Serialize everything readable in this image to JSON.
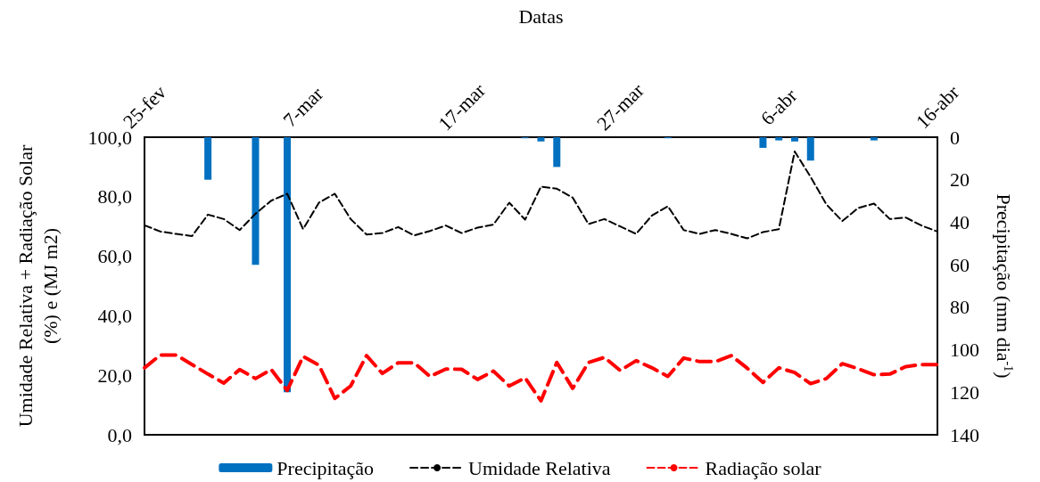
{
  "chart_data": {
    "type": "line",
    "xlabel": "Datas",
    "ylabel": "Umidade Relativa + Radiação Solar\n(%) e (MJ m2)",
    "y2label": "Precipitação (mm dia$^{-1}$)",
    "x": [
      "--02-25",
      "--02-26",
      "--02-27",
      "--02-28",
      "--03-01",
      "--03-02",
      "--03-03",
      "--03-04",
      "--03-05",
      "--03-06",
      "--03-07",
      "--03-08",
      "--03-09",
      "--03-10",
      "--03-11",
      "--03-12",
      "--03-13",
      "--03-14",
      "--03-15",
      "--03-16",
      "--03-17",
      "--03-18",
      "--03-19",
      "--03-20",
      "--03-21",
      "--03-22",
      "--03-23",
      "--03-24",
      "--03-25",
      "--03-26",
      "--03-27",
      "--03-28",
      "--03-29",
      "--03-30",
      "--03-31",
      "--04-01",
      "--04-02",
      "--04-03",
      "--04-04",
      "--04-05",
      "--04-06",
      "--04-07",
      "--04-08",
      "--04-09",
      "--04-10",
      "--04-11",
      "--04-12",
      "--04-13",
      "--04-14",
      "--04-15",
      "--04-16"
    ],
    "series": [
      {
        "name": "Precipitação",
        "type": "bar",
        "axis": "y2",
        "color": "#0070c0",
        "x": [
          "--03-01",
          "--03-04",
          "--03-06",
          "--03-21",
          "--03-22",
          "--03-23",
          "--03-30",
          "--04-05",
          "--04-06",
          "--04-07",
          "--04-08",
          "--04-12"
        ],
        "values": [
          20,
          60,
          120,
          0.5,
          2,
          14,
          0.5,
          5,
          1.5,
          2,
          11,
          1.5
        ]
      },
      {
        "name": "Umidade Relativa",
        "color": "#000000",
        "line_style": "dashed",
        "values": [
          70.4,
          68.3,
          67.5,
          66.8,
          74,
          72.5,
          68.8,
          74.3,
          78.7,
          81,
          69.1,
          78,
          81,
          72.5,
          67.3,
          67.8,
          69.8,
          67,
          68.5,
          70.3,
          67.8,
          69.6,
          70.6,
          78,
          72.3,
          83.4,
          82.7,
          79.7,
          70.8,
          72.5,
          70,
          67.5,
          73.7,
          76.8,
          68.8,
          67.5,
          68.8,
          67.5,
          66,
          68.1,
          69.1,
          95.2,
          86.7,
          77.4,
          71.8,
          76.2,
          77.7,
          72.5,
          73,
          70.3,
          68.3
        ]
      },
      {
        "name": "Radiação solar",
        "color": "#ff0000",
        "line_style": "dashed",
        "values": [
          22.5,
          26.8,
          26.8,
          23.6,
          20.4,
          17.4,
          21.9,
          18.9,
          21.9,
          14.9,
          26.3,
          23.4,
          12.2,
          16.4,
          26.6,
          20.6,
          24.2,
          24.2,
          19.6,
          22.1,
          22,
          18.6,
          21.4,
          16.4,
          19.1,
          11.4,
          24.3,
          15.6,
          24.3,
          26,
          21.6,
          24.9,
          22.5,
          19.6,
          25.8,
          24.6,
          24.6,
          26.6,
          22.4,
          17.6,
          22.5,
          20.9,
          17.2,
          18.9,
          23.9,
          22.2,
          20.2,
          20.4,
          22.9,
          23.6,
          23.6
        ]
      }
    ],
    "xlim": [
      "--02-25",
      "--04-16"
    ],
    "xticks": [
      {
        "value": "--02-25",
        "label": "25-fev"
      },
      {
        "value": "--03-07",
        "label": "7-mar"
      },
      {
        "value": "--03-17",
        "label": "17-mar"
      },
      {
        "value": "--03-27",
        "label": "27-mar"
      },
      {
        "value": "--04-06",
        "label": "6-abr"
      },
      {
        "value": "--04-16",
        "label": "16-abr"
      }
    ],
    "ylim": [
      0,
      100
    ],
    "yticks": [
      {
        "value": 0,
        "label": "0,0"
      },
      {
        "value": 20,
        "label": "20,0"
      },
      {
        "value": 40,
        "label": "40,0"
      },
      {
        "value": 60,
        "label": "60,0"
      },
      {
        "value": 80,
        "label": "80,0"
      },
      {
        "value": 100,
        "label": "100,0"
      }
    ],
    "y2lim": [
      140,
      0
    ],
    "y2ticks": [
      0,
      20,
      40,
      60,
      80,
      100,
      120,
      140
    ],
    "grid": false,
    "legend": "bottom",
    "marker": "none"
  }
}
